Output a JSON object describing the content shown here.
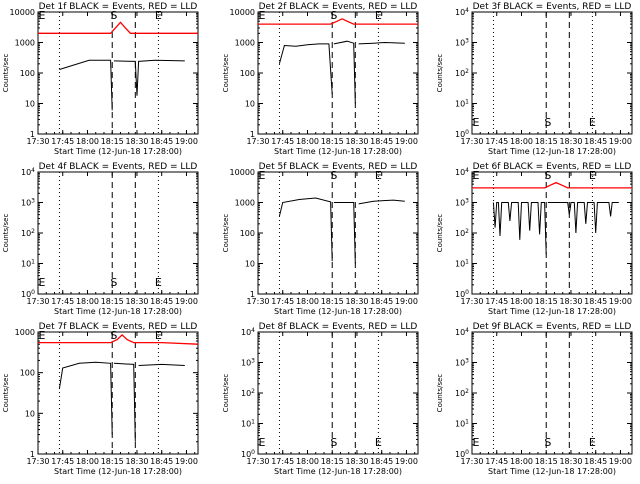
{
  "figure": {
    "xlabel": "Start Time (12-Jun-18 17:28:00)",
    "ylabel": "Counts/sec",
    "x_ticks": [
      "17:30",
      "17:45",
      "18:00",
      "18:15",
      "18:30",
      "18:45",
      "19:00"
    ],
    "y_ticks_main": [
      "1",
      "10",
      "100",
      "1000",
      "10000"
    ],
    "y_ticks_exp": [
      "10^0",
      "10^1",
      "10^2",
      "10^3",
      "10^4"
    ],
    "marker_labels": {
      "start": "E",
      "s": "S",
      "end": "E"
    },
    "colors": {
      "events": "#000000",
      "lld": "#ff0000"
    }
  },
  "chart_data": [
    {
      "type": "line",
      "title": "Det 1f BLACK = Events, RED = LLD",
      "y_scale": "log",
      "ylim": [
        1,
        10000
      ],
      "tick_style": "decimal",
      "xlim": [
        "17:30",
        "19:07"
      ],
      "x_dotted": [
        "17:43",
        "18:43"
      ],
      "x_dashed": [
        "18:15",
        "18:29"
      ],
      "series": [
        {
          "name": "Events",
          "color": "#000000",
          "x": [
            "17:43",
            "18:01",
            "18:14",
            "18:15",
            "18:16",
            "18:16",
            "18:29",
            "18:30",
            "18:31",
            "18:41",
            "18:59"
          ],
          "y": [
            130,
            260,
            260,
            6,
            null,
            250,
            240,
            18,
            240,
            260,
            250
          ]
        },
        {
          "name": "LLD",
          "color": "#ff0000",
          "x": [
            "17:30",
            "18:14",
            "18:17",
            "18:20",
            "18:23",
            "18:26",
            "19:07"
          ],
          "y": [
            2000,
            2000,
            3000,
            4600,
            3000,
            2000,
            2000
          ]
        }
      ],
      "labels": [
        [
          "17:30",
          "E"
        ],
        [
          "18:16",
          "S"
        ],
        [
          "18:43",
          "E"
        ]
      ]
    },
    {
      "type": "line",
      "title": "Det 2f BLACK = Events, RED = LLD",
      "y_scale": "log",
      "ylim": [
        1,
        10000
      ],
      "tick_style": "decimal",
      "xlim": [
        "17:30",
        "19:07"
      ],
      "x_dotted": [
        "17:43",
        "18:43"
      ],
      "x_dashed": [
        "18:15",
        "18:29"
      ],
      "series": [
        {
          "name": "Events",
          "color": "#000000",
          "x": [
            "17:43",
            "17:46",
            "17:53",
            "18:00",
            "18:07",
            "18:13",
            "18:15",
            "18:16",
            "18:16",
            "18:24",
            "18:28",
            "18:29",
            "18:30",
            "18:31",
            "18:40",
            "18:47",
            "18:59"
          ],
          "y": [
            200,
            800,
            750,
            850,
            900,
            900,
            20,
            null,
            900,
            1100,
            950,
            10,
            null,
            900,
            950,
            1000,
            950
          ]
        },
        {
          "name": "LLD",
          "color": "#ff0000",
          "x": [
            "17:30",
            "18:14",
            "18:18",
            "18:21",
            "18:24",
            "18:28",
            "19:07"
          ],
          "y": [
            4000,
            4000,
            5000,
            6000,
            5000,
            4000,
            4000
          ]
        }
      ],
      "labels": [
        [
          "17:30",
          "E"
        ],
        [
          "18:16",
          "S"
        ],
        [
          "18:43",
          "E"
        ]
      ]
    },
    {
      "type": "line",
      "title": "Det 3f BLACK = Events, RED = LLD",
      "y_scale": "log",
      "ylim": [
        1,
        10000
      ],
      "tick_style": "exp",
      "xlim": [
        "17:30",
        "19:07"
      ],
      "x_dotted": [
        "17:43",
        "18:43"
      ],
      "x_dashed": [
        "18:15",
        "18:29"
      ],
      "series": [],
      "labels": [
        [
          "17:30",
          "E"
        ],
        [
          "18:16",
          "S"
        ],
        [
          "18:43",
          "E"
        ]
      ]
    },
    {
      "type": "line",
      "title": "Det 4f BLACK = Events, RED = LLD",
      "y_scale": "log",
      "ylim": [
        1,
        10000
      ],
      "tick_style": "exp",
      "xlim": [
        "17:30",
        "19:07"
      ],
      "x_dotted": [
        "17:43",
        "18:43"
      ],
      "x_dashed": [
        "18:15",
        "18:29"
      ],
      "series": [],
      "labels": [
        [
          "17:30",
          "E"
        ],
        [
          "18:16",
          "S"
        ],
        [
          "18:43",
          "E"
        ]
      ]
    },
    {
      "type": "line",
      "title": "Det 5f BLACK = Events, RED = LLD",
      "y_scale": "log",
      "ylim": [
        1,
        10000
      ],
      "tick_style": "decimal",
      "xlim": [
        "17:30",
        "19:07"
      ],
      "x_dotted": [
        "17:43",
        "18:43"
      ],
      "x_dashed": [
        "18:15",
        "18:29"
      ],
      "series": [
        {
          "name": "Events",
          "color": "#000000",
          "x": [
            "17:43",
            "17:45",
            "17:55",
            "18:05",
            "18:14",
            "18:15",
            "18:16",
            "18:16",
            "18:28",
            "18:29",
            "18:30",
            "18:31",
            "18:40",
            "18:52",
            "18:59"
          ],
          "y": [
            350,
            1000,
            1250,
            1400,
            1050,
            12,
            null,
            1000,
            1000,
            10,
            null,
            900,
            1100,
            1200,
            1100
          ]
        }
      ],
      "labels": [
        [
          "17:30",
          "E"
        ],
        [
          "18:16",
          "S"
        ],
        [
          "18:43",
          "E"
        ]
      ]
    },
    {
      "type": "line",
      "title": "Det 6f BLACK = Events, RED = LLD",
      "y_scale": "log",
      "ylim": [
        1,
        10000
      ],
      "tick_style": "exp",
      "xlim": [
        "17:30",
        "19:07"
      ],
      "x_dotted": [
        "17:43",
        "18:43"
      ],
      "x_dashed": [
        "18:15",
        "18:29"
      ],
      "series": [
        {
          "name": "Events",
          "color": "#000000",
          "x": [
            "17:43",
            "17:44",
            "17:45",
            "17:46",
            "17:47",
            "17:48",
            "17:50",
            "17:52",
            "17:53",
            "17:54",
            "17:56",
            "17:58",
            "17:59",
            "18:00",
            "18:02",
            "18:04",
            "18:05",
            "18:06",
            "18:08",
            "18:10",
            "18:11",
            "18:12",
            "18:14",
            "18:15",
            "18:16",
            "18:16",
            "18:20",
            "18:24",
            "18:28",
            "18:29",
            "18:30",
            "18:32",
            "18:33",
            "18:34",
            "18:36",
            "18:38",
            "18:39",
            "18:40",
            "18:42",
            "18:44",
            "18:45",
            "18:46",
            "18:50",
            "18:53",
            "18:54",
            "18:55",
            "18:58",
            "18:59"
          ],
          "y": [
            1000,
            150,
            1000,
            1000,
            80,
            1000,
            1000,
            1000,
            250,
            1000,
            1000,
            1000,
            60,
            1000,
            1000,
            1000,
            120,
            1000,
            1000,
            1000,
            90,
            1000,
            1000,
            20,
            null,
            1000,
            1000,
            1000,
            1000,
            400,
            1000,
            1000,
            100,
            1000,
            1000,
            1000,
            200,
            1000,
            1000,
            1000,
            100,
            1000,
            1000,
            1000,
            350,
            1000,
            1000,
            1000
          ]
        },
        {
          "name": "LLD",
          "color": "#ff0000",
          "x": [
            "17:30",
            "18:14",
            "18:18",
            "18:21",
            "18:24",
            "18:28",
            "19:07"
          ],
          "y": [
            3000,
            3000,
            3800,
            4500,
            3800,
            3000,
            3000
          ]
        }
      ],
      "labels": [
        [
          "17:30",
          "E"
        ],
        [
          "18:16",
          "S"
        ],
        [
          "18:43",
          "E"
        ]
      ]
    },
    {
      "type": "line",
      "title": "Det 7f BLACK = Events, RED = LLD",
      "y_scale": "log",
      "ylim": [
        1,
        1000
      ],
      "tick_style": "decimal",
      "xlim": [
        "17:30",
        "19:07"
      ],
      "x_dotted": [
        "17:43",
        "18:43"
      ],
      "x_dashed": [
        "18:15",
        "18:29"
      ],
      "series": [
        {
          "name": "Events",
          "color": "#000000",
          "x": [
            "17:43",
            "17:45",
            "17:55",
            "18:05",
            "18:14",
            "18:15",
            "18:16",
            "18:16",
            "18:28",
            "18:29",
            "18:30",
            "18:31",
            "18:45",
            "18:59"
          ],
          "y": [
            40,
            130,
            170,
            180,
            170,
            3,
            null,
            170,
            160,
            2,
            null,
            150,
            160,
            150
          ]
        },
        {
          "name": "LLD",
          "color": "#ff0000",
          "x": [
            "17:30",
            "18:14",
            "18:18",
            "18:21",
            "18:24",
            "18:28",
            "18:45",
            "19:07"
          ],
          "y": [
            550,
            550,
            650,
            850,
            650,
            550,
            550,
            500
          ]
        }
      ],
      "labels": [
        [
          "17:30",
          "E"
        ],
        [
          "18:16",
          "S"
        ],
        [
          "18:43",
          "E"
        ]
      ]
    },
    {
      "type": "line",
      "title": "Det 8f BLACK = Events, RED = LLD",
      "y_scale": "log",
      "ylim": [
        1,
        10000
      ],
      "tick_style": "exp",
      "xlim": [
        "17:30",
        "19:07"
      ],
      "x_dotted": [
        "17:43",
        "18:43"
      ],
      "x_dashed": [
        "18:15",
        "18:29"
      ],
      "series": [],
      "labels": [
        [
          "17:30",
          "E"
        ],
        [
          "18:16",
          "S"
        ],
        [
          "18:43",
          "E"
        ]
      ]
    },
    {
      "type": "line",
      "title": "Det 9f BLACK = Events, RED = LLD",
      "y_scale": "log",
      "ylim": [
        1,
        10000
      ],
      "tick_style": "exp",
      "xlim": [
        "17:30",
        "19:07"
      ],
      "x_dotted": [
        "17:43",
        "18:43"
      ],
      "x_dashed": [
        "18:15",
        "18:29"
      ],
      "series": [],
      "labels": [
        [
          "17:30",
          "E"
        ],
        [
          "18:16",
          "S"
        ],
        [
          "18:43",
          "E"
        ]
      ]
    }
  ]
}
